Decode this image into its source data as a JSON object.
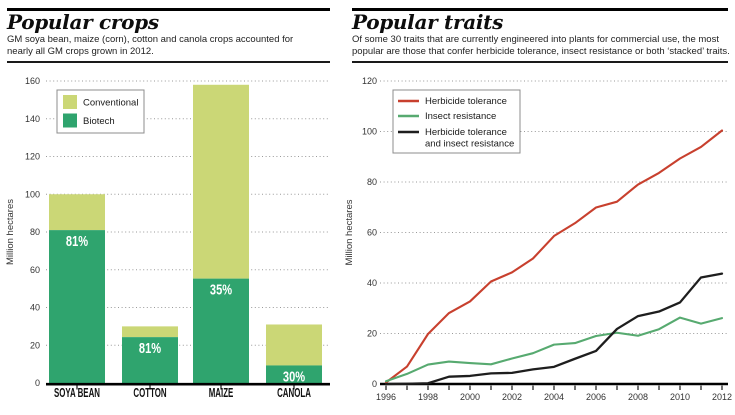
{
  "left_panel": {
    "title": "Popular crops",
    "subtitle_lines": [
      "GM soya bean, maize (corn), cotton and canola crops accounted for",
      "nearly all GM crops grown in 2012."
    ],
    "legend_order": [
      "Conventional",
      "Biotech"
    ],
    "chart_data": {
      "type": "bar",
      "stacked": true,
      "categories": [
        "SOYA BEAN",
        "COTTON",
        "MAIZE",
        "CANOLA"
      ],
      "series": [
        {
          "name": "Biotech",
          "color": "#2fa46e",
          "values": [
            81,
            24.3,
            55.3,
            9.3
          ]
        },
        {
          "name": "Conventional",
          "color": "#cbd776",
          "values": [
            19,
            5.7,
            102.7,
            21.7
          ]
        }
      ],
      "totals": [
        100,
        30,
        158,
        31
      ],
      "bar_labels": [
        "81%",
        "81%",
        "35%",
        "30%"
      ],
      "xlabel": "",
      "ylabel": "Million hectares",
      "ylim": [
        0,
        160
      ],
      "ytick_step": 20,
      "grid": "dotted-horizontal",
      "legend_position": "top-left-inset"
    }
  },
  "right_panel": {
    "title": "Popular traits",
    "subtitle_lines": [
      "Of some 30 traits that are currently engineered into plants for commercial use, the most",
      "popular are those that confer herbicide tolerance, insect resistance or both ‘stacked’ traits."
    ],
    "chart_data": {
      "type": "line",
      "x": [
        1996,
        1997,
        1998,
        1999,
        2000,
        2001,
        2002,
        2003,
        2004,
        2005,
        2006,
        2007,
        2008,
        2009,
        2010,
        2011,
        2012
      ],
      "x_label_step": 2,
      "series": [
        {
          "name": "Herbicide tolerance",
          "color": "#c8402e",
          "legend_lines": [
            "Herbicide tolerance"
          ],
          "values": [
            0.6,
            6.9,
            19.8,
            28.1,
            32.7,
            40.6,
            44.2,
            49.7,
            58.6,
            63.7,
            69.9,
            72.2,
            79,
            83.6,
            89.3,
            93.9,
            100.4
          ]
        },
        {
          "name": "Insect resistance",
          "color": "#57aa70",
          "legend_lines": [
            "Insect resistance"
          ],
          "values": [
            1.1,
            4,
            7.7,
            8.9,
            8.3,
            7.8,
            10.1,
            12.2,
            15.6,
            16.2,
            19,
            20.3,
            19.1,
            21.7,
            26.3,
            23.9,
            26.1
          ]
        },
        {
          "name": "Herbicide tolerance and insect resistance",
          "color": "#1e1e1e",
          "legend_lines": [
            "Herbicide tolerance",
            "and insect resistance"
          ],
          "values": [
            0,
            0.1,
            0.3,
            2.9,
            3.2,
            4.2,
            4.4,
            5.8,
            6.8,
            10,
            13.1,
            21.8,
            26.9,
            28.7,
            32.3,
            42.2,
            43.7
          ]
        }
      ],
      "xlabel": "",
      "ylabel": "Million hectares",
      "ylim": [
        0,
        120
      ],
      "ytick_step": 20,
      "grid": "dotted-horizontal",
      "legend_position": "top-left-inset"
    }
  },
  "colors": {
    "rule": "#000000",
    "grid": "#9a9a9a",
    "axis_text": "#333333",
    "bar_label_text": "#ffffff"
  }
}
